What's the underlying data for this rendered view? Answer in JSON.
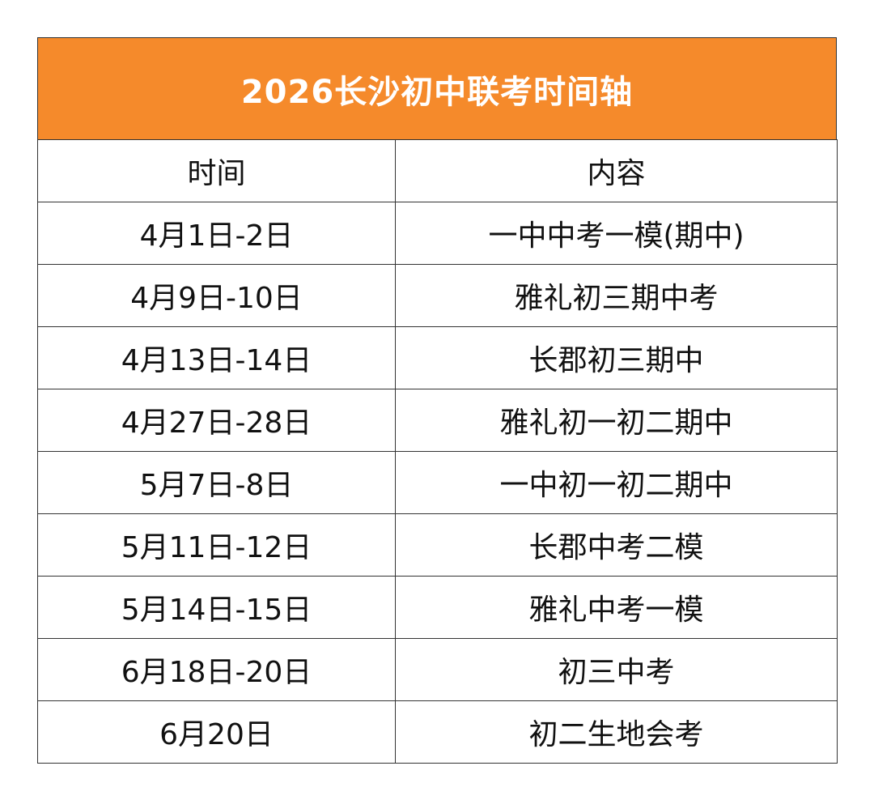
{
  "title": "2026长沙初中联考时间轴",
  "colors": {
    "header_bg": "#F58A2B",
    "header_text": "#FFFFFF",
    "border": "#333333"
  },
  "columns": {
    "time": "时间",
    "content": "内容"
  },
  "rows": [
    {
      "time": "4月1日-2日",
      "content": "一中中考一模(期中)"
    },
    {
      "time": "4月9日-10日",
      "content": "雅礼初三期中考"
    },
    {
      "time": "4月13日-14日",
      "content": "长郡初三期中"
    },
    {
      "time": "4月27日-28日",
      "content": "雅礼初一初二期中"
    },
    {
      "time": "5月7日-8日",
      "content": "一中初一初二期中"
    },
    {
      "time": "5月11日-12日",
      "content": "长郡中考二模"
    },
    {
      "time": "5月14日-15日",
      "content": "雅礼中考一模"
    },
    {
      "time": "6月18日-20日",
      "content": "初三中考"
    },
    {
      "time": "6月20日",
      "content": "初二生地会考"
    }
  ]
}
